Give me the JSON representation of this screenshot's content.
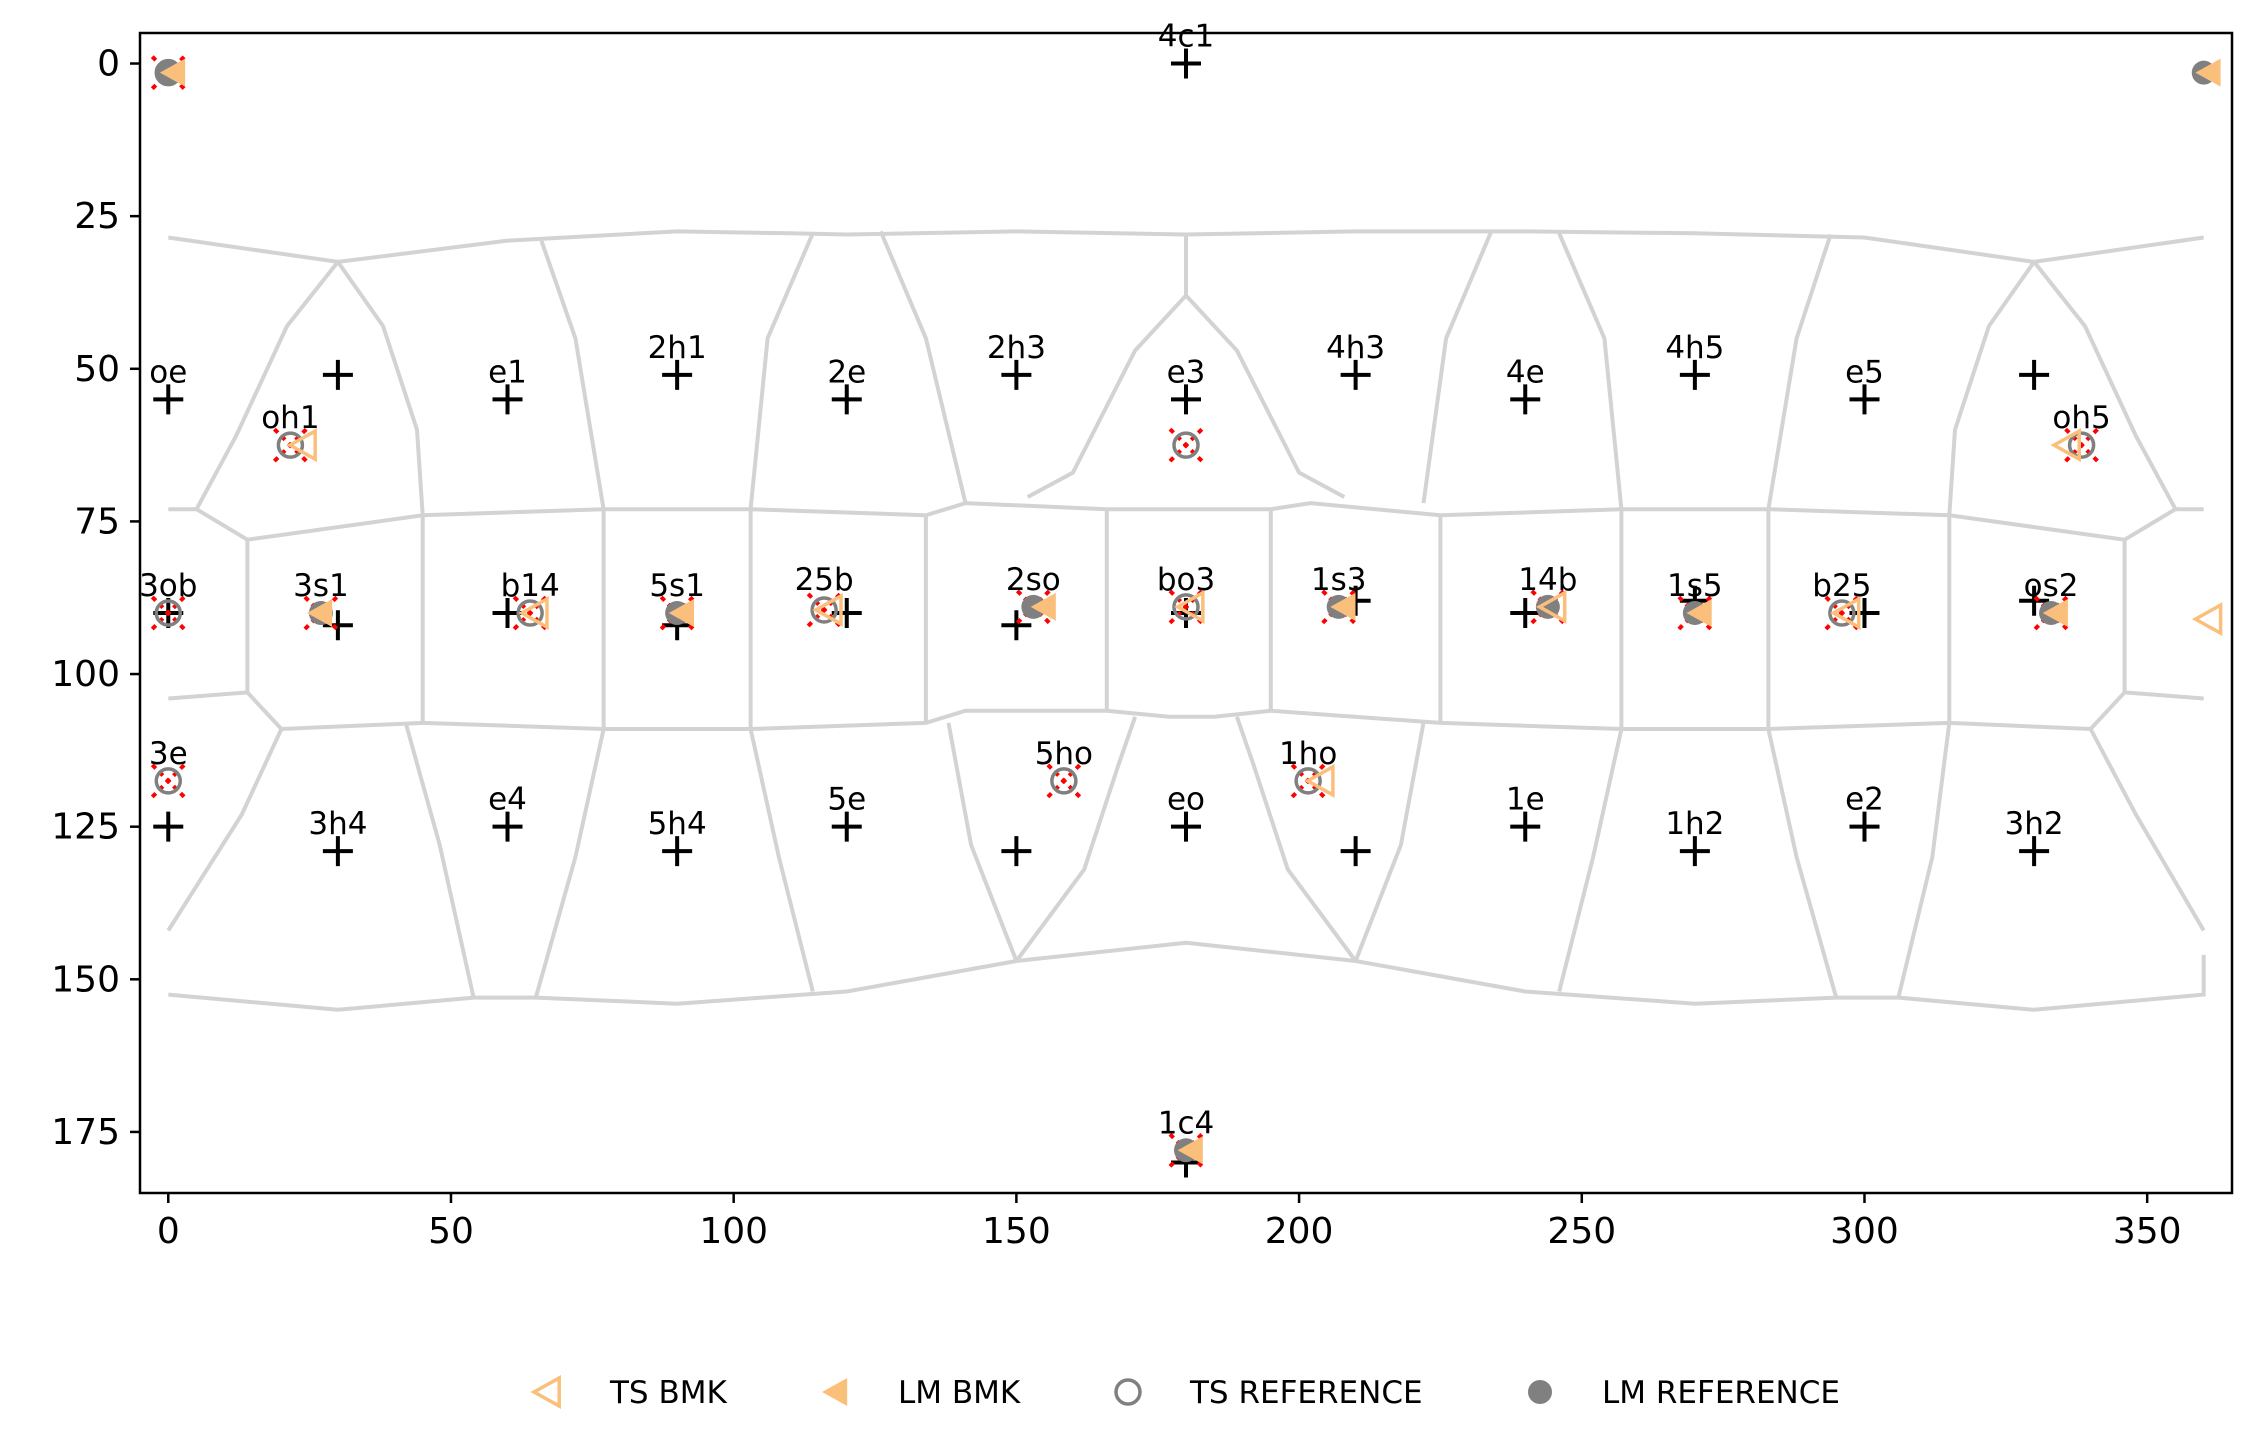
{
  "chart_data": {
    "type": "scatter",
    "title": "",
    "xlabel": "",
    "ylabel": "",
    "xlim": [
      -5,
      365
    ],
    "ylim": [
      185,
      -5
    ],
    "xticks": [
      0,
      50,
      100,
      150,
      200,
      250,
      300,
      350
    ],
    "yticks": [
      0,
      25,
      50,
      75,
      100,
      125,
      150,
      175
    ],
    "grid": false,
    "legend_placement": "bottom-center",
    "colors": {
      "bmk": "#fbbf7c",
      "reference": "#808080",
      "marker_plus": "#000000",
      "marker_x": "#ff0000",
      "cells": "#d3d3d3"
    },
    "legend": [
      {
        "label": "TS BMK",
        "marker": "triangle-left-open",
        "color": "#fbbf7c"
      },
      {
        "label": "LM BMK",
        "marker": "triangle-left-filled",
        "color": "#fbbf7c"
      },
      {
        "label": "TS REFERENCE",
        "marker": "circle-open",
        "color": "#808080"
      },
      {
        "label": "LM REFERENCE",
        "marker": "circle-filled",
        "color": "#808080"
      }
    ],
    "labeled_points": [
      {
        "label": "4c1",
        "x": 180,
        "y": 0
      },
      {
        "label": "oe",
        "x": 0,
        "y": 55
      },
      {
        "label": "e1",
        "x": 60,
        "y": 55
      },
      {
        "label": "2h1",
        "x": 90,
        "y": 51
      },
      {
        "label": "2e",
        "x": 120,
        "y": 55
      },
      {
        "label": "2h3",
        "x": 150,
        "y": 51
      },
      {
        "label": "e3",
        "x": 180,
        "y": 55
      },
      {
        "label": "4h3",
        "x": 210,
        "y": 51
      },
      {
        "label": "4e",
        "x": 240,
        "y": 55
      },
      {
        "label": "4h5",
        "x": 270,
        "y": 51
      },
      {
        "label": "e5",
        "x": 300,
        "y": 55
      },
      {
        "label": "oh1",
        "x": 21.6,
        "y": 62.5
      },
      {
        "label": "oh5",
        "x": 338.4,
        "y": 62.5
      },
      {
        "label": "3ob",
        "x": 0,
        "y": 90
      },
      {
        "label": "3s1",
        "x": 27,
        "y": 90
      },
      {
        "label": "b14",
        "x": 64,
        "y": 90
      },
      {
        "label": "5s1",
        "x": 90,
        "y": 90
      },
      {
        "label": "25b",
        "x": 116,
        "y": 89
      },
      {
        "label": "2so",
        "x": 153,
        "y": 89
      },
      {
        "label": "bo3",
        "x": 180,
        "y": 89
      },
      {
        "label": "1s3",
        "x": 207,
        "y": 89
      },
      {
        "label": "14b",
        "x": 244,
        "y": 89
      },
      {
        "label": "1s5",
        "x": 270,
        "y": 90
      },
      {
        "label": "b25",
        "x": 296,
        "y": 90
      },
      {
        "label": "os2",
        "x": 333,
        "y": 90
      },
      {
        "label": "3e",
        "x": 0,
        "y": 117.5
      },
      {
        "label": "e4",
        "x": 60,
        "y": 125
      },
      {
        "label": "3h4",
        "x": 30,
        "y": 129
      },
      {
        "label": "5h4",
        "x": 90,
        "y": 129
      },
      {
        "label": "5e",
        "x": 120,
        "y": 125
      },
      {
        "label": "5ho",
        "x": 158.4,
        "y": 117.5
      },
      {
        "label": "eo",
        "x": 180,
        "y": 125
      },
      {
        "label": "1ho",
        "x": 201.6,
        "y": 117.5
      },
      {
        "label": "1e",
        "x": 240,
        "y": 125
      },
      {
        "label": "1h2",
        "x": 270,
        "y": 129
      },
      {
        "label": "e2",
        "x": 300,
        "y": 125
      },
      {
        "label": "3h2",
        "x": 330,
        "y": 129
      },
      {
        "label": "1c4",
        "x": 180,
        "y": 178
      }
    ],
    "plus_points": [
      [
        180,
        0
      ],
      [
        0,
        55
      ],
      [
        30,
        51
      ],
      [
        60,
        55
      ],
      [
        90,
        51
      ],
      [
        120,
        55
      ],
      [
        150,
        51
      ],
      [
        180,
        55
      ],
      [
        210,
        51
      ],
      [
        240,
        55
      ],
      [
        270,
        51
      ],
      [
        300,
        55
      ],
      [
        330,
        51
      ],
      [
        0,
        90
      ],
      [
        30,
        92
      ],
      [
        60,
        90
      ],
      [
        90,
        92
      ],
      [
        120,
        90
      ],
      [
        150,
        92
      ],
      [
        180,
        90
      ],
      [
        210,
        88
      ],
      [
        240,
        90
      ],
      [
        270,
        88
      ],
      [
        300,
        90
      ],
      [
        330,
        88
      ],
      [
        0,
        125
      ],
      [
        30,
        129
      ],
      [
        60,
        125
      ],
      [
        90,
        129
      ],
      [
        120,
        125
      ],
      [
        150,
        129
      ],
      [
        180,
        125
      ],
      [
        210,
        129
      ],
      [
        240,
        125
      ],
      [
        270,
        129
      ],
      [
        300,
        125
      ],
      [
        330,
        129
      ],
      [
        180,
        180
      ]
    ],
    "x_points": [
      [
        0,
        1.5
      ],
      [
        21.6,
        62.5
      ],
      [
        180,
        62.5
      ],
      [
        338.4,
        62.5
      ],
      [
        0,
        90
      ],
      [
        27,
        90
      ],
      [
        64,
        90
      ],
      [
        90,
        90
      ],
      [
        116,
        89.5
      ],
      [
        153,
        89
      ],
      [
        180,
        89
      ],
      [
        207,
        89
      ],
      [
        244,
        89
      ],
      [
        270,
        90
      ],
      [
        296,
        90
      ],
      [
        333,
        90
      ],
      [
        0,
        117.5
      ],
      [
        158.4,
        117.5
      ],
      [
        201.6,
        117.5
      ],
      [
        180,
        178
      ]
    ],
    "ts_reference": [
      [
        0,
        1.5
      ],
      [
        21.6,
        62.5
      ],
      [
        180,
        62.5
      ],
      [
        338.4,
        62.5
      ],
      [
        0,
        90
      ],
      [
        64,
        90
      ],
      [
        116,
        89.5
      ],
      [
        180,
        89
      ],
      [
        296,
        90
      ],
      [
        0,
        117.5
      ],
      [
        158.4,
        117.5
      ],
      [
        201.6,
        117.5
      ]
    ],
    "lm_reference": [
      [
        0,
        1.5
      ],
      [
        360,
        1.5
      ],
      [
        27,
        90
      ],
      [
        90,
        90
      ],
      [
        153,
        89
      ],
      [
        207,
        89
      ],
      [
        244,
        89
      ],
      [
        270,
        90
      ],
      [
        333,
        90
      ],
      [
        180,
        178
      ]
    ],
    "ts_bmk": [
      [
        24,
        62.5
      ],
      [
        336,
        62.5
      ],
      [
        65,
        90
      ],
      [
        117,
        89.5
      ],
      [
        181,
        89
      ],
      [
        245,
        89
      ],
      [
        297,
        90
      ],
      [
        204,
        117.5
      ],
      [
        361,
        91
      ]
    ],
    "lm_bmk": [
      [
        1,
        1.5
      ],
      [
        361,
        1.5
      ],
      [
        27,
        90
      ],
      [
        91,
        90
      ],
      [
        155,
        89
      ],
      [
        208,
        89
      ],
      [
        271,
        90
      ],
      [
        334,
        90
      ],
      [
        181,
        178
      ]
    ],
    "cell_boundaries": [
      [
        [
          0,
          28.5
        ],
        [
          30,
          32.5
        ],
        [
          60,
          29
        ],
        [
          90,
          27.5
        ],
        [
          110,
          27.8
        ],
        [
          120,
          28
        ],
        [
          150,
          27.5
        ],
        [
          180,
          28
        ],
        [
          210,
          27.5
        ],
        [
          240,
          27.5
        ],
        [
          270,
          27.8
        ],
        [
          300,
          28.5
        ],
        [
          330,
          32.5
        ],
        [
          360,
          28.5
        ]
      ],
      [
        [
          0,
          73
        ],
        [
          5,
          73
        ],
        [
          14,
          78
        ],
        [
          45,
          74
        ],
        [
          77,
          73
        ],
        [
          103,
          73
        ],
        [
          134,
          74
        ],
        [
          141,
          72
        ],
        [
          166,
          73
        ],
        [
          177,
          73
        ],
        [
          195,
          73
        ],
        [
          202,
          72
        ],
        [
          225,
          74
        ],
        [
          257,
          73
        ],
        [
          283,
          73
        ],
        [
          315,
          74
        ],
        [
          346,
          78
        ],
        [
          355,
          73
        ],
        [
          360,
          73
        ]
      ],
      [
        [
          0,
          104
        ],
        [
          14,
          103
        ],
        [
          20,
          109
        ],
        [
          45,
          108
        ],
        [
          77,
          109
        ],
        [
          103,
          109
        ],
        [
          134,
          108
        ],
        [
          141,
          106
        ],
        [
          166,
          106
        ],
        [
          177,
          107
        ],
        [
          185,
          107
        ],
        [
          195,
          106
        ],
        [
          225,
          108
        ],
        [
          257,
          109
        ],
        [
          283,
          109
        ],
        [
          315,
          108
        ],
        [
          340,
          109
        ],
        [
          346,
          103
        ],
        [
          360,
          104
        ]
      ],
      [
        [
          0,
          152.5
        ],
        [
          30,
          155
        ],
        [
          54,
          153
        ],
        [
          65,
          153
        ],
        [
          90,
          154
        ],
        [
          120,
          152
        ],
        [
          150,
          147
        ],
        [
          180,
          144
        ],
        [
          210,
          147
        ],
        [
          240,
          152
        ],
        [
          270,
          154
        ],
        [
          295,
          153
        ],
        [
          306,
          153
        ],
        [
          330,
          155
        ],
        [
          360,
          152.5
        ],
        [
          360,
          146
        ]
      ],
      [
        [
          180,
          28
        ],
        [
          180,
          38
        ]
      ],
      [
        [
          180,
          38
        ],
        [
          171,
          47
        ],
        [
          160,
          67
        ],
        [
          152,
          71
        ]
      ],
      [
        [
          180,
          38
        ],
        [
          189,
          47
        ],
        [
          200,
          67
        ],
        [
          208,
          71
        ]
      ],
      [
        [
          30,
          32.5
        ],
        [
          21,
          43
        ],
        [
          12,
          61
        ],
        [
          5,
          73
        ]
      ],
      [
        [
          30,
          32.5
        ],
        [
          38,
          43
        ],
        [
          44,
          60
        ],
        [
          45,
          74
        ]
      ],
      [
        [
          330,
          32.5
        ],
        [
          339,
          43
        ],
        [
          348,
          61
        ],
        [
          355,
          73
        ]
      ],
      [
        [
          330,
          32.5
        ],
        [
          322,
          43
        ],
        [
          316,
          60
        ],
        [
          315,
          74
        ]
      ],
      [
        [
          66,
          29
        ],
        [
          72,
          45
        ],
        [
          77,
          73
        ]
      ],
      [
        [
          114,
          27.8
        ],
        [
          106,
          45
        ],
        [
          103,
          73
        ]
      ],
      [
        [
          126,
          27.5
        ],
        [
          134,
          45
        ],
        [
          141,
          72
        ]
      ],
      [
        [
          234,
          27.5
        ],
        [
          226,
          45
        ],
        [
          222,
          72
        ]
      ],
      [
        [
          246,
          27.8
        ],
        [
          254,
          45
        ],
        [
          257,
          73
        ]
      ],
      [
        [
          294,
          28
        ],
        [
          288,
          45
        ],
        [
          283,
          73
        ]
      ],
      [
        [
          77,
          73
        ],
        [
          77,
          109
        ]
      ],
      [
        [
          103,
          73
        ],
        [
          103,
          109
        ]
      ],
      [
        [
          134,
          74
        ],
        [
          134,
          108
        ]
      ],
      [
        [
          166,
          73
        ],
        [
          166,
          106
        ]
      ],
      [
        [
          195,
          73
        ],
        [
          195,
          106
        ]
      ],
      [
        [
          225,
          74
        ],
        [
          225,
          108
        ]
      ],
      [
        [
          257,
          73
        ],
        [
          257,
          109
        ]
      ],
      [
        [
          283,
          73
        ],
        [
          283,
          109
        ]
      ],
      [
        [
          45,
          74
        ],
        [
          45,
          108
        ]
      ],
      [
        [
          315,
          74
        ],
        [
          315,
          108
        ]
      ],
      [
        [
          14,
          78
        ],
        [
          14,
          103
        ]
      ],
      [
        [
          346,
          78
        ],
        [
          346,
          103
        ]
      ],
      [
        [
          20,
          109
        ],
        [
          13,
          123
        ],
        [
          0,
          142
        ]
      ],
      [
        [
          340,
          109
        ],
        [
          348,
          123
        ],
        [
          360,
          142
        ]
      ],
      [
        [
          42,
          108
        ],
        [
          48,
          128
        ],
        [
          54,
          153
        ]
      ],
      [
        [
          77,
          109
        ],
        [
          72,
          130
        ],
        [
          65,
          153
        ]
      ],
      [
        [
          103,
          109
        ],
        [
          108,
          130
        ],
        [
          114,
          152
        ]
      ],
      [
        [
          138,
          108
        ],
        [
          142,
          128
        ],
        [
          150,
          147
        ]
      ],
      [
        [
          150,
          147
        ],
        [
          162,
          132
        ],
        [
          168,
          115
        ],
        [
          171,
          107
        ]
      ],
      [
        [
          210,
          147
        ],
        [
          198,
          132
        ],
        [
          192,
          115
        ],
        [
          189,
          107
        ]
      ],
      [
        [
          222,
          108
        ],
        [
          218,
          128
        ],
        [
          210,
          147
        ]
      ],
      [
        [
          257,
          109
        ],
        [
          252,
          130
        ],
        [
          246,
          152
        ]
      ],
      [
        [
          283,
          109
        ],
        [
          288,
          130
        ],
        [
          295,
          153
        ]
      ],
      [
        [
          315,
          108
        ],
        [
          312,
          130
        ],
        [
          306,
          153
        ]
      ]
    ]
  }
}
